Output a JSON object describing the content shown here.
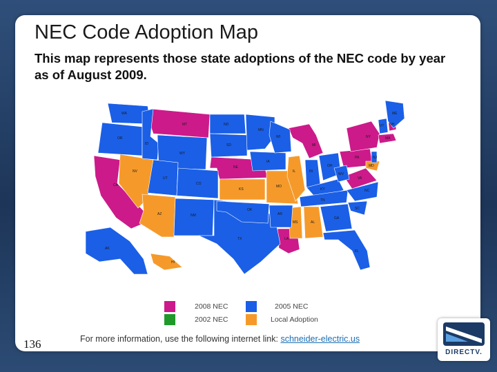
{
  "header": {
    "title": "NEC Code Adoption Map",
    "subtitle": "This map represents those state adoptions of the NEC code by year as of August 2009."
  },
  "colors": {
    "nec_2008": "#cc1a8a",
    "nec_2005": "#1a5fe6",
    "nec_2002": "#1f9a2a",
    "local": "#f59a2a"
  },
  "legend": [
    {
      "label": "2008 NEC",
      "color": "#cc1a8a"
    },
    {
      "label": "2005 NEC",
      "color": "#1a5fe6"
    },
    {
      "label": "2002 NEC",
      "color": "#1f9a2a"
    },
    {
      "label": "Local Adoption",
      "color": "#f59a2a"
    }
  ],
  "state_labels": [
    "WA",
    "OR",
    "ID",
    "MT",
    "ND",
    "MN",
    "WI",
    "MI",
    "ME",
    "VT",
    "NH",
    "NY",
    "MA",
    "SD",
    "WY",
    "NE",
    "IA",
    "IL",
    "IN",
    "OH",
    "PA",
    "NJ",
    "NV",
    "UT",
    "CO",
    "KS",
    "MO",
    "KY",
    "WV",
    "VA",
    "MD",
    "CA",
    "AZ",
    "NM",
    "OK",
    "AR",
    "TN",
    "NC",
    "SC",
    "TX",
    "LA",
    "MS",
    "AL",
    "GA",
    "FL",
    "AK",
    "HI"
  ],
  "footer": {
    "slide_number": "136",
    "text": "For more information, use the following internet link:",
    "link": "schneider-electric.us"
  },
  "logo": {
    "brand": "DIRECTV."
  }
}
